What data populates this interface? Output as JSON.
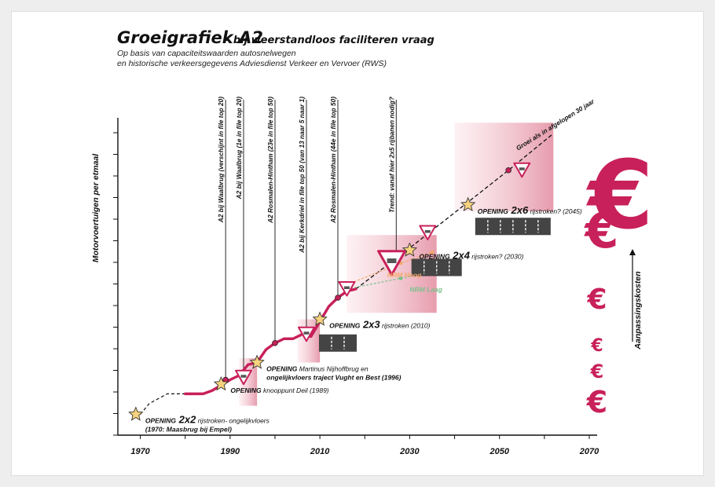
{
  "chart_data": {
    "type": "line",
    "title": "Groeigrafiek A2",
    "subtitle_inline": "- bij weerstandloos faciliteren vraag",
    "subtitle_lines": [
      "Op basis van capaciteitswaarden autosnelwegen",
      "en historische verkeersgegevens Adviesdienst Verkeer en Vervoer (RWS)"
    ],
    "ylabel": "Motorvoertuigen per etmaal",
    "y2label": "Aanpassingskosten",
    "xlim": [
      1965,
      2070
    ],
    "x_ticks": [
      "1970",
      "1990",
      "2010",
      "2030",
      "2050",
      "2070"
    ],
    "colors": {
      "accent": "#c8205a",
      "highlight": "#f6d27e",
      "nrm_hoog": "#f2a86a",
      "nrm_laag": "#79c28a",
      "shade": "#e9a6b3"
    },
    "series": [
      {
        "x": [
          1980,
          1984,
          1986,
          1988,
          1990,
          1992,
          1994,
          1996,
          1998,
          2000,
          2002,
          2004,
          2006,
          2008,
          2010,
          2012,
          2014,
          2016,
          2018
        ],
        "y": [
          1.55,
          1.55,
          1.7,
          1.95,
          2.2,
          2.4,
          2.9,
          3.0,
          3.6,
          3.9,
          4.1,
          4.1,
          4.3,
          4.2,
          4.9,
          5.6,
          6.0,
          6.3,
          6.4
        ]
      }
    ],
    "dashed_history": {
      "x": [
        1970,
        1972,
        1976,
        1980
      ],
      "y": [
        0.6,
        1.1,
        1.55,
        1.55
      ]
    },
    "trend": {
      "x": [
        2018,
        2030,
        2052,
        2062
      ],
      "y": [
        6.4,
        8.3,
        11.9,
        13.6
      ]
    },
    "nrm_hoog": {
      "name": "NRM Hoog",
      "x": [
        2016,
        2028,
        2035
      ],
      "y": [
        6.6,
        7.6,
        8.1
      ]
    },
    "nrm_laag": {
      "name": "NRM Laag",
      "x": [
        2016,
        2028,
        2040
      ],
      "y": [
        6.4,
        6.9,
        7.4
      ]
    },
    "shaded_zones": [
      {
        "x0": 1992,
        "x1": 1996,
        "y0": 1.0,
        "y1": 3.2
      },
      {
        "x0": 2005,
        "x1": 2010,
        "y0": 3.0,
        "y1": 5.0
      },
      {
        "x0": 2016,
        "x1": 2036,
        "y0": 5.3,
        "y1": 8.9
      },
      {
        "x0": 2040,
        "x1": 2062,
        "y0": 10.0,
        "y1": 14.1
      }
    ],
    "openings": [
      {
        "x": 1969,
        "y": 0.6,
        "word": "OPENING",
        "type": "2x2",
        "rest": "rijstroken- ongelijkvloers",
        "line2": "(1970: Maasbrug bij Empel)"
      },
      {
        "x": 1988,
        "y": 2.0,
        "word": "OPENING",
        "type": "",
        "rest": "knooppunt Deil (1989)",
        "line2": ""
      },
      {
        "x": 1996,
        "y": 3.0,
        "word": "OPENING",
        "type": "",
        "rest": "Martinus Nijhoffbrug en",
        "line2": "ongelijkvloers traject Vught en Best (1996)"
      },
      {
        "x": 2010,
        "y": 5.0,
        "word": "OPENING",
        "type": "2x3",
        "rest": "rijstroken (2010)",
        "line2": ""
      },
      {
        "x": 2030,
        "y": 8.2,
        "word": "OPENING",
        "type": "2x4",
        "rest": "rijstroken? (2030)",
        "line2": ""
      },
      {
        "x": 2043,
        "y": 10.3,
        "word": "OPENING",
        "type": "2x6",
        "rest": "rijstroken? (2045)",
        "line2": ""
      }
    ],
    "warnings": [
      {
        "x": 1993,
        "y": 2.3
      },
      {
        "x": 2007,
        "y": 4.3
      },
      {
        "x": 2016,
        "y": 6.4
      },
      {
        "x": 2026,
        "y": 7.6
      },
      {
        "x": 2034,
        "y": 9.0
      },
      {
        "x": 2055,
        "y": 11.9
      }
    ],
    "events": [
      {
        "x": 1989,
        "y": 2.2,
        "label": "A2 bij Waalbrug (verschijnt in file top 20)"
      },
      {
        "x": 1993,
        "y": 2.4,
        "label": "A2 bij Waalbrug (1e in file top 20)"
      },
      {
        "x": 2000,
        "y": 3.9,
        "label": "A2 Rosmalen-Hintham (23e in file top 50)"
      },
      {
        "x": 2007,
        "y": 4.3,
        "label": "A2 bij Kerkdriel in file top 50 (van 13 naar 5 naar 1)"
      },
      {
        "x": 2014,
        "y": 6.0,
        "label": "A2 Rosmalen-Hintham (44e in file top 50)"
      },
      {
        "x": 2027,
        "y": 7.6,
        "label": "Trend: vanaf hier 2x5 rijbanen nodig?"
      },
      {
        "x": 2052,
        "y": 11.9,
        "label": "Groei als in afgelopen 30 jaar"
      }
    ],
    "road_icons": [
      {
        "x": 2014,
        "y": 4.3,
        "lanes": 3
      },
      {
        "x": 2036,
        "y": 7.8,
        "lanes": 4
      },
      {
        "x": 2053,
        "y": 9.7,
        "lanes": 6
      }
    ],
    "cost_icon": "euro-icon"
  }
}
